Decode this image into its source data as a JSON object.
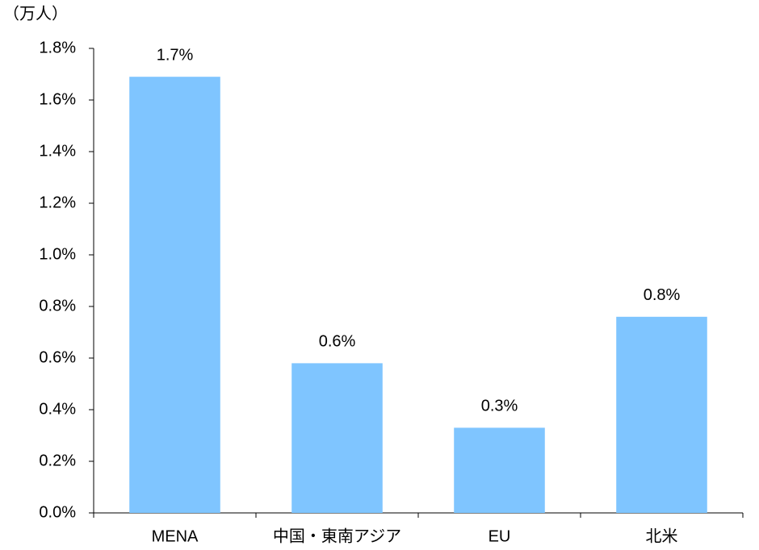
{
  "chart_data": {
    "type": "bar",
    "y_label": "（万人）",
    "categories": [
      "MENA",
      "中国・東南アジア",
      "EU",
      "北米"
    ],
    "values": [
      1.69,
      0.58,
      0.33,
      0.76
    ],
    "value_labels": [
      "1.7%",
      "0.6%",
      "0.3%",
      "0.8%"
    ],
    "color": "#7fc5ff",
    "ylim": [
      0,
      1.8
    ],
    "yticks": [
      {
        "value": 0,
        "label": "0.0%"
      },
      {
        "value": 0.2,
        "label": "0.2%"
      },
      {
        "value": 0.4,
        "label": "0.4%"
      },
      {
        "value": 0.6,
        "label": "0.6%"
      },
      {
        "value": 0.8,
        "label": "0.8%"
      },
      {
        "value": 1.0,
        "label": "1.0%"
      },
      {
        "value": 1.2,
        "label": "1.2%"
      },
      {
        "value": 1.4,
        "label": "1.4%"
      },
      {
        "value": 1.6,
        "label": "1.6%"
      },
      {
        "value": 1.8,
        "label": "1.8%"
      }
    ],
    "grid": false
  }
}
